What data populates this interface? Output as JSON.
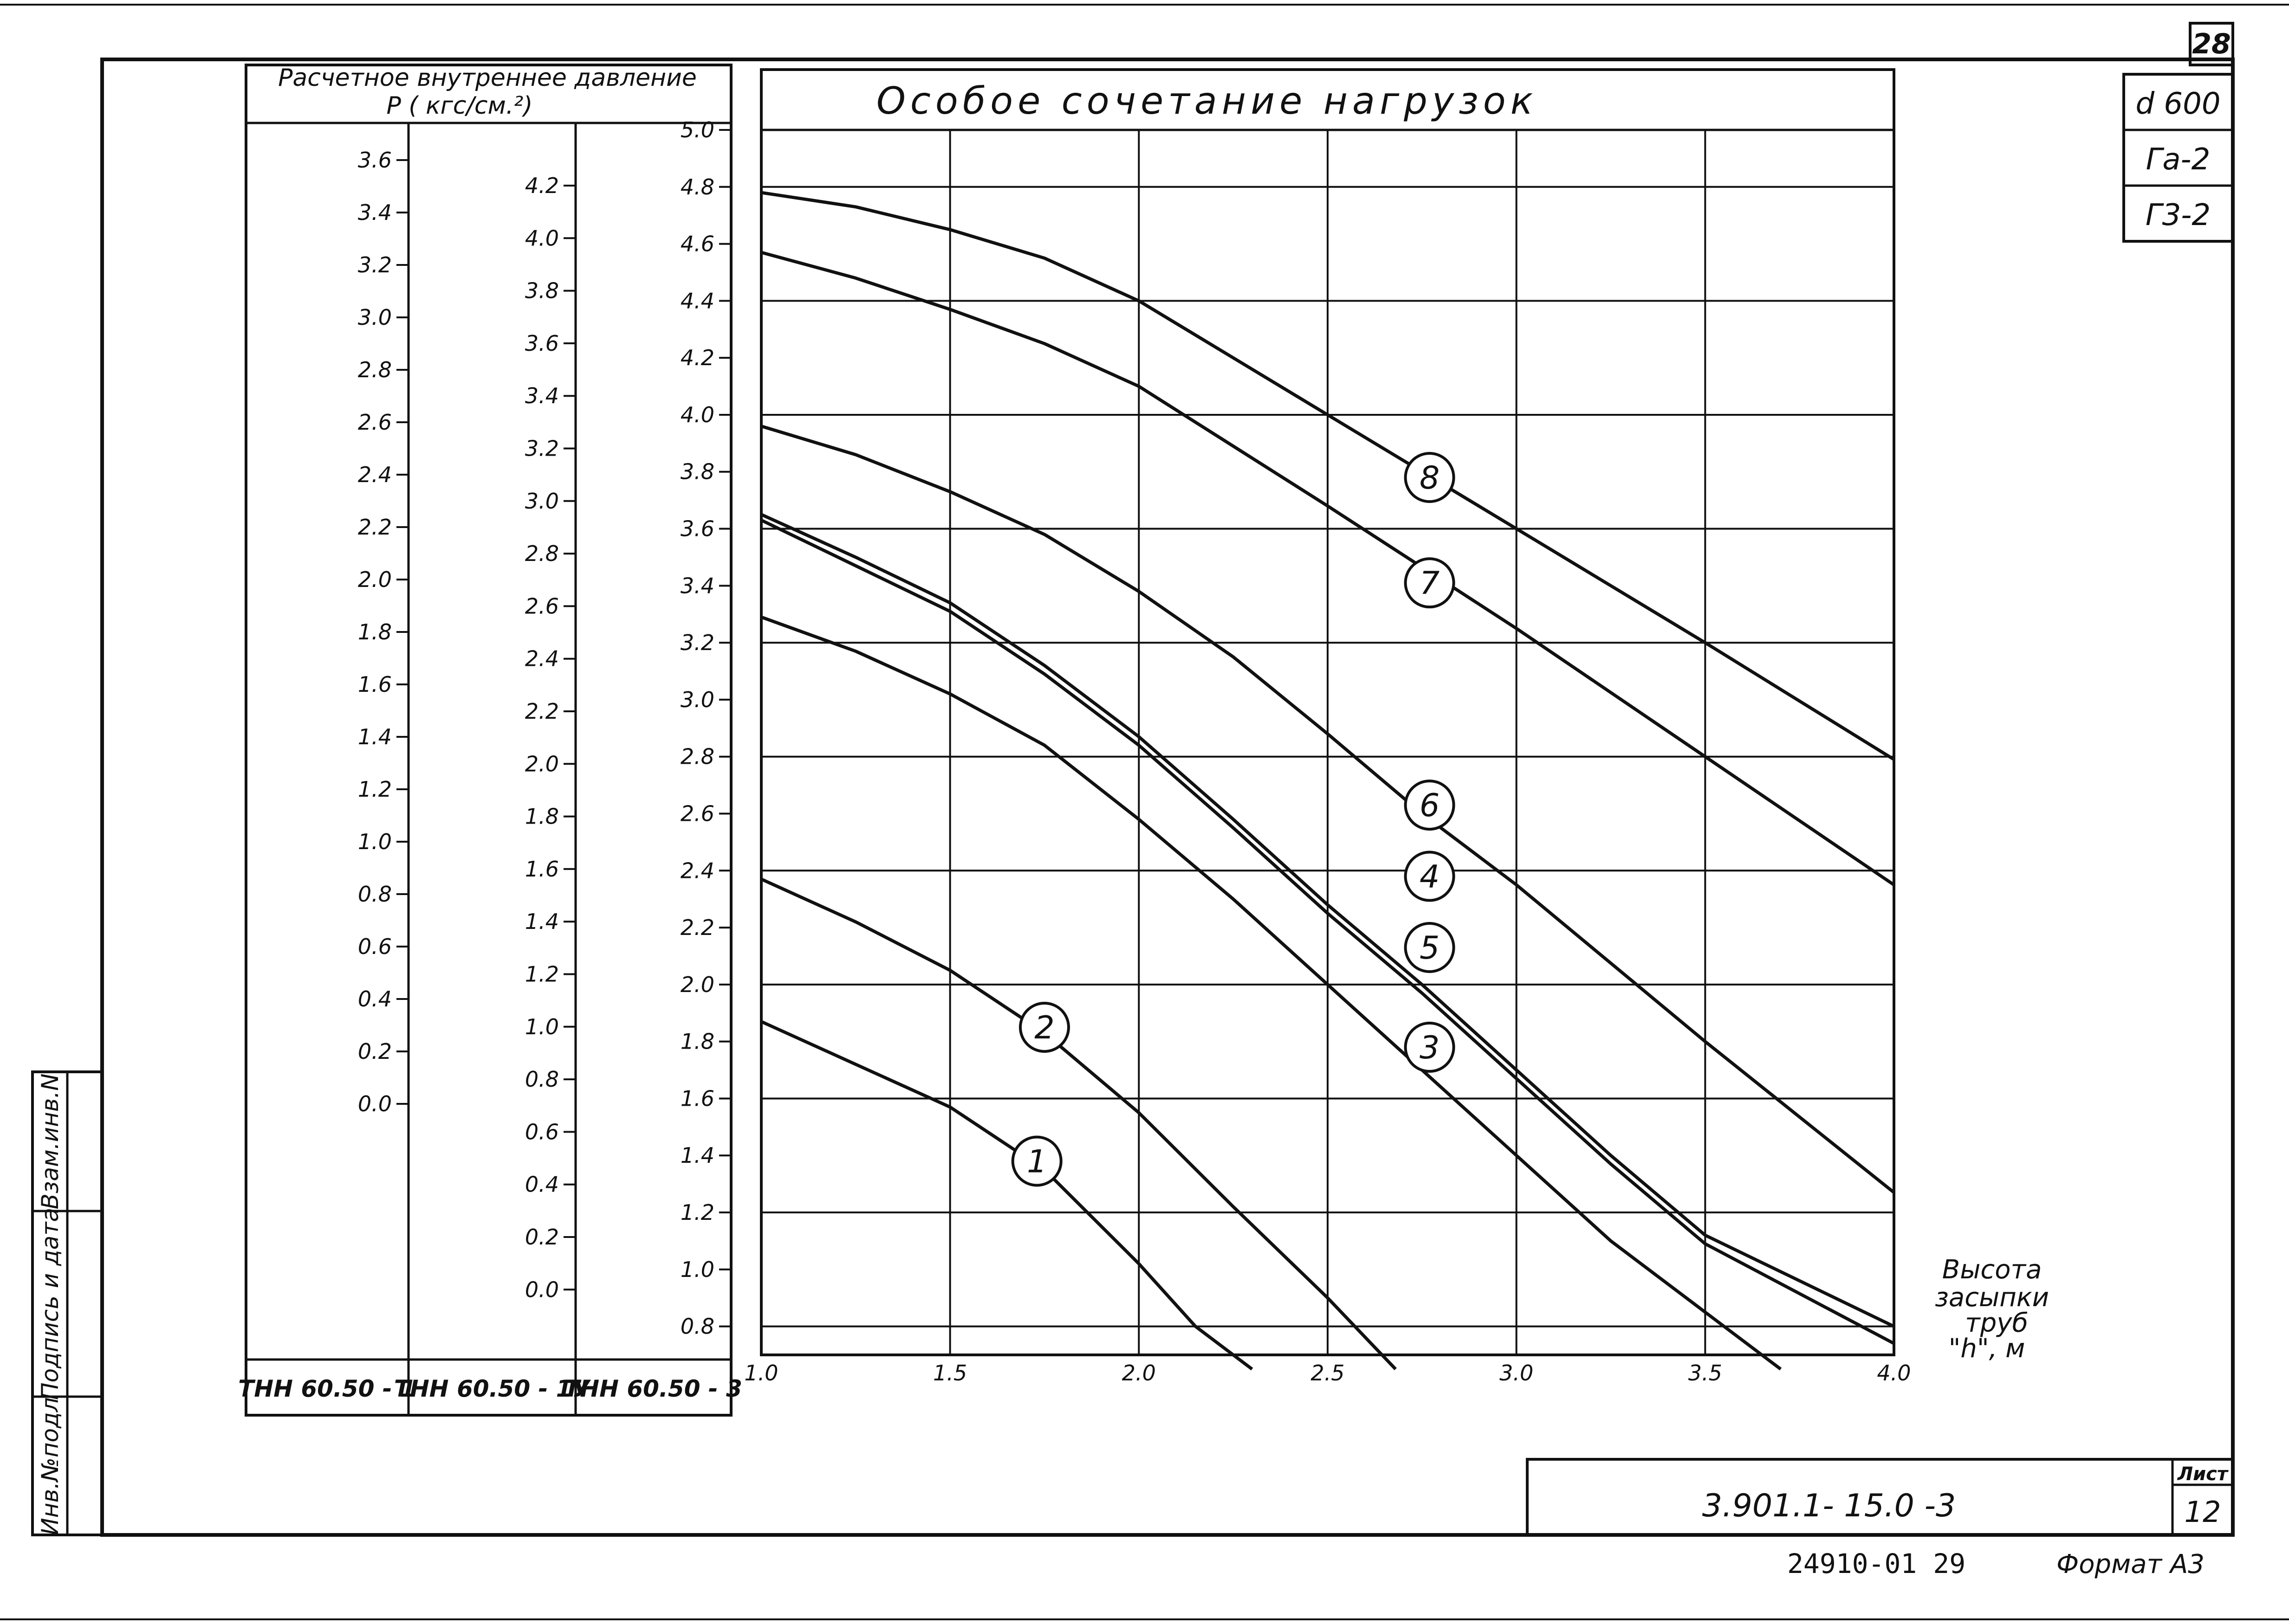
{
  "sheet_number_top": "28",
  "corner_stamp": {
    "diameter": "d 600",
    "g_a": "Гa-2",
    "g_3": "Г3-2"
  },
  "side_stamp": {
    "inv_podl": "Инв.№подл",
    "podpis_data": "Подпись и дата",
    "vzam_inv": "Взам.инв.N"
  },
  "title_block": {
    "doc_code": "3.901.1- 15.0 -3",
    "sheet_label": "Лист",
    "sheet_value": "12"
  },
  "footer": {
    "archive_code": "24910-01   29",
    "format_label": "Формат А3"
  },
  "scale_table": {
    "header_line1": "Расчетное  внутреннее  давление",
    "header_line2": "P ( кгс/см.²)",
    "columns": [
      {
        "label": "ТНН 60.50 - 1",
        "ticks": [
          "3.6",
          "3.4",
          "3.2",
          "3.0",
          "2.8",
          "2.6",
          "2.4",
          "2.2",
          "2.0",
          "1.8",
          "1.6",
          "1.4",
          "1.2",
          "1.0",
          "0.8",
          "0.6",
          "0.4",
          "0.2",
          "0.0"
        ]
      },
      {
        "label": "ТНН 60.50 - 1У",
        "ticks": [
          "4.2",
          "4.0",
          "3.8",
          "3.6",
          "3.4",
          "3.2",
          "3.0",
          "2.8",
          "2.6",
          "2.4",
          "2.2",
          "2.0",
          "1.8",
          "1.6",
          "1.4",
          "1.2",
          "1.0",
          "0.8",
          "0.6",
          "0.4",
          "0.2",
          "0.0"
        ]
      },
      {
        "label": "ТНН 60.50 - 3",
        "ticks": [
          "5.0",
          "4.8",
          "4.6",
          "4.4",
          "4.2",
          "4.0",
          "3.8",
          "3.6",
          "3.4",
          "3.2",
          "3.0",
          "2.8",
          "2.6",
          "2.4",
          "2.2",
          "2.0",
          "1.8",
          "1.6",
          "1.4",
          "1.2",
          "1.0",
          "0.8"
        ]
      }
    ]
  },
  "chart_data": {
    "type": "line",
    "title": "Особое  сочетание  нагрузок",
    "xlabel": "Высота засыпки труб \"h\", м",
    "xlim": [
      1.0,
      4.0
    ],
    "ylim": [
      0.7,
      5.0
    ],
    "x_ticks": [
      "1.0",
      "1.5",
      "2.0",
      "2.5",
      "3.0",
      "3.5",
      "4.0"
    ],
    "y_axis_note": "y values read on the ТНН 60.50-3 scale",
    "grid": true,
    "series": [
      {
        "name": "1",
        "points": [
          [
            1.0,
            1.87
          ],
          [
            1.25,
            1.72
          ],
          [
            1.5,
            1.57
          ],
          [
            1.75,
            1.35
          ],
          [
            2.0,
            1.02
          ],
          [
            2.15,
            0.8
          ],
          [
            2.3,
            0.65
          ]
        ]
      },
      {
        "name": "2",
        "points": [
          [
            1.0,
            2.37
          ],
          [
            1.25,
            2.22
          ],
          [
            1.5,
            2.05
          ],
          [
            1.75,
            1.83
          ],
          [
            2.0,
            1.55
          ],
          [
            2.25,
            1.22
          ],
          [
            2.5,
            0.9
          ],
          [
            2.68,
            0.65
          ]
        ]
      },
      {
        "name": "3",
        "points": [
          [
            1.0,
            3.29
          ],
          [
            1.25,
            3.17
          ],
          [
            1.5,
            3.02
          ],
          [
            1.75,
            2.84
          ],
          [
            2.0,
            2.58
          ],
          [
            2.25,
            2.3
          ],
          [
            2.5,
            2.0
          ],
          [
            2.75,
            1.7
          ],
          [
            3.0,
            1.4
          ],
          [
            3.25,
            1.1
          ],
          [
            3.5,
            0.85
          ],
          [
            3.7,
            0.65
          ]
        ]
      },
      {
        "name": "4",
        "points": [
          [
            1.0,
            3.65
          ],
          [
            1.25,
            3.5
          ],
          [
            1.5,
            3.34
          ],
          [
            1.75,
            3.12
          ],
          [
            2.0,
            2.87
          ],
          [
            2.25,
            2.58
          ],
          [
            2.5,
            2.28
          ],
          [
            2.75,
            2.0
          ],
          [
            3.0,
            1.7
          ],
          [
            3.25,
            1.4
          ],
          [
            3.5,
            1.12
          ],
          [
            4.0,
            0.8
          ]
        ]
      },
      {
        "name": "5",
        "points": [
          [
            1.0,
            3.63
          ],
          [
            1.25,
            3.47
          ],
          [
            1.5,
            3.31
          ],
          [
            1.75,
            3.09
          ],
          [
            2.0,
            2.84
          ],
          [
            2.25,
            2.55
          ],
          [
            2.5,
            2.25
          ],
          [
            2.75,
            1.97
          ],
          [
            3.0,
            1.67
          ],
          [
            3.25,
            1.37
          ],
          [
            3.5,
            1.09
          ],
          [
            4.0,
            0.74
          ]
        ]
      },
      {
        "name": "6",
        "points": [
          [
            1.0,
            3.96
          ],
          [
            1.25,
            3.86
          ],
          [
            1.5,
            3.73
          ],
          [
            1.75,
            3.58
          ],
          [
            2.0,
            3.38
          ],
          [
            2.25,
            3.15
          ],
          [
            2.5,
            2.88
          ],
          [
            2.75,
            2.6
          ],
          [
            3.0,
            2.35
          ],
          [
            3.5,
            1.8
          ],
          [
            4.0,
            1.27
          ]
        ]
      },
      {
        "name": "7",
        "points": [
          [
            1.0,
            4.57
          ],
          [
            1.25,
            4.48
          ],
          [
            1.5,
            4.37
          ],
          [
            1.75,
            4.25
          ],
          [
            2.0,
            4.1
          ],
          [
            2.5,
            3.68
          ],
          [
            3.0,
            3.25
          ],
          [
            3.5,
            2.8
          ],
          [
            4.0,
            2.35
          ]
        ]
      },
      {
        "name": "8",
        "points": [
          [
            1.0,
            4.78
          ],
          [
            1.25,
            4.73
          ],
          [
            1.5,
            4.65
          ],
          [
            1.75,
            4.55
          ],
          [
            2.0,
            4.4
          ],
          [
            2.5,
            4.0
          ],
          [
            3.0,
            3.6
          ],
          [
            3.5,
            3.2
          ],
          [
            4.0,
            2.79
          ]
        ]
      }
    ],
    "curve_markers": [
      {
        "label": "1",
        "x": 1.73,
        "y": 1.38
      },
      {
        "label": "2",
        "x": 1.75,
        "y": 1.85
      },
      {
        "label": "3",
        "x": 2.77,
        "y": 1.78
      },
      {
        "label": "4",
        "x": 2.77,
        "y": 2.38
      },
      {
        "label": "5",
        "x": 2.77,
        "y": 2.13
      },
      {
        "label": "6",
        "x": 2.77,
        "y": 2.63
      },
      {
        "label": "7",
        "x": 2.77,
        "y": 3.41
      },
      {
        "label": "8",
        "x": 2.77,
        "y": 3.78
      }
    ]
  }
}
